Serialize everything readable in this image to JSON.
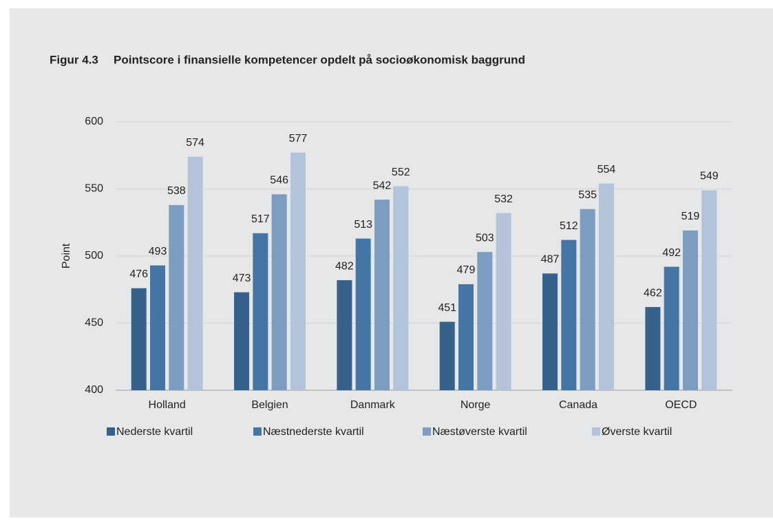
{
  "chart_data": {
    "type": "bar",
    "figure_label": "Figur 4.3",
    "title": "Pointscore i finansielle kompetencer opdelt på socioøkonomisk baggrund",
    "y_label": "Point",
    "categories": [
      "Holland",
      "Belgien",
      "Danmark",
      "Norge",
      "Canada",
      "OECD"
    ],
    "series": [
      {
        "name": "Nederste kvartil",
        "color": "#36618a",
        "values": [
          476,
          473,
          482,
          451,
          487,
          462
        ]
      },
      {
        "name": "Næstnederste kvartil",
        "color": "#4475a5",
        "values": [
          493,
          517,
          513,
          479,
          512,
          492
        ]
      },
      {
        "name": "Næstøverste kvartil",
        "color": "#7d9cc2",
        "values": [
          538,
          546,
          542,
          503,
          535,
          519
        ]
      },
      {
        "name": "Øverste kvartil",
        "color": "#b3c3da",
        "values": [
          574,
          577,
          552,
          532,
          554,
          549
        ]
      }
    ],
    "ylim": [
      400,
      600
    ],
    "yticks": [
      400,
      450,
      500,
      550,
      600
    ],
    "grid": true,
    "legend": "bottom"
  }
}
